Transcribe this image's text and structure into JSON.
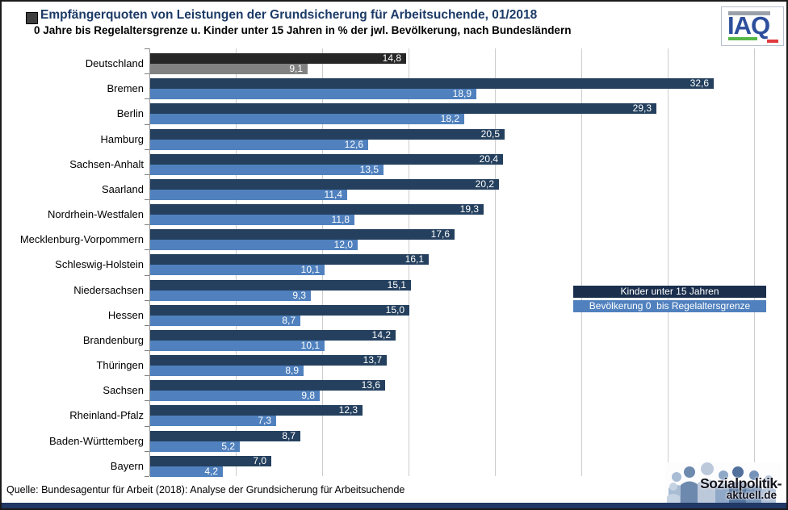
{
  "header": {
    "title": "Empfängerquoten von Leistungen der Grundsicherung für Arbeitsuchende, 01/2018",
    "subtitle": "0 Jahre bis Regelaltersgrenze u. Kinder unter 15 Jahren in % der jwl. Bevölkerung, nach Bundesländern"
  },
  "branding": {
    "iaq_text": "IAQ",
    "sozialpolitik_line1": "Sozialpolitik-",
    "sozialpolitik_line2": "aktuell.de"
  },
  "chart_data": {
    "type": "bar",
    "orientation": "horizontal",
    "title": "Empfängerquoten von Leistungen der Grundsicherung für Arbeitsuchende, 01/2018",
    "subtitle": "0 Jahre bis Regelaltersgrenze u. Kinder unter 15 Jahren in % der jwl. Bevölkerung, nach Bundesländern",
    "categories": [
      "Deutschland",
      "Bremen",
      "Berlin",
      "Hamburg",
      "Sachsen-Anhalt",
      "Saarland",
      "Nordrhein-Westfalen",
      "Mecklenburg-Vorpommern",
      "Schleswig-Holstein",
      "Niedersachsen",
      "Hessen",
      "Brandenburg",
      "Thüringen",
      "Sachsen",
      "Rheinland-Pfalz",
      "Baden-Württemberg",
      "Bayern"
    ],
    "series": [
      {
        "name": "Kinder unter 15 Jahren",
        "color_default": "#24405e",
        "color_deutschland": "#262626",
        "values": [
          14.8,
          32.6,
          29.3,
          20.5,
          20.4,
          20.2,
          19.3,
          17.6,
          16.1,
          15.1,
          15.0,
          14.2,
          13.7,
          13.6,
          12.3,
          8.7,
          7.0
        ]
      },
      {
        "name": "Bevölkerung 0  bis Regelaltersgrenze",
        "color_default": "#5081be",
        "color_deutschland": "#828282",
        "values": [
          9.1,
          18.9,
          18.2,
          12.6,
          13.5,
          11.4,
          11.8,
          12.0,
          10.1,
          9.3,
          8.7,
          10.1,
          8.9,
          9.8,
          7.3,
          5.2,
          4.2
        ]
      }
    ],
    "xlim": [
      0,
      35
    ],
    "gridline_step": 5,
    "grid": true,
    "decimal_separator": ",",
    "value_labels": "inside-end, white",
    "legend_position": "right-middle"
  },
  "legend": {
    "items": [
      {
        "label": "Kinder unter 15 Jahren",
        "color": "#1b2f4d"
      },
      {
        "label": "Bevölkerung 0  bis Regelaltersgrenze",
        "color": "#5081be"
      }
    ]
  },
  "footer": {
    "source": "Quelle: Bundesagentur für Arbeit (2018): Analyse der Grundsicherung für Arbeitsuchende",
    "bottom_bar_color": "#203864"
  }
}
